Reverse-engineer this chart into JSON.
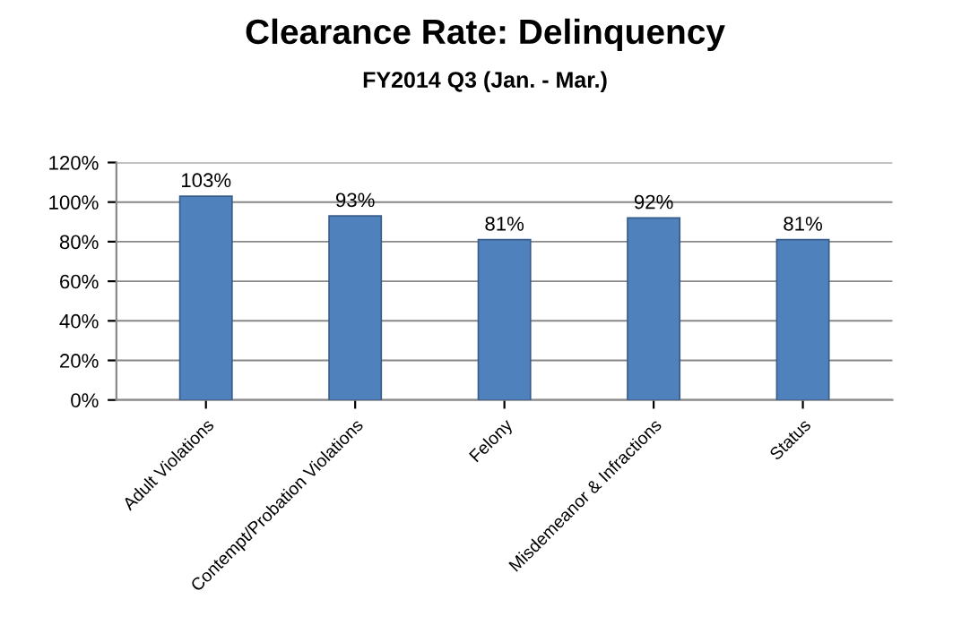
{
  "chart_data": {
    "type": "bar",
    "title": "Clearance Rate: Delinquency",
    "subtitle": "FY2014 Q3 (Jan. - Mar.)",
    "categories": [
      "Adult Violations",
      "Contempt/Probation Violations",
      "Felony",
      "Misdemeanor & Infractions",
      "Status"
    ],
    "values": [
      103,
      93,
      81,
      92,
      81
    ],
    "value_labels": [
      "103%",
      "93%",
      "81%",
      "92%",
      "81%"
    ],
    "color": "#4f81bd",
    "ylim": [
      0,
      120
    ],
    "yticks": [
      {
        "value": 0,
        "label": "0%"
      },
      {
        "value": 20,
        "label": "20%"
      },
      {
        "value": 40,
        "label": "40%"
      },
      {
        "value": 60,
        "label": "60%"
      },
      {
        "value": 80,
        "label": "80%"
      },
      {
        "value": 100,
        "label": "100%"
      },
      {
        "value": 120,
        "label": "120%"
      }
    ],
    "grid": "y"
  }
}
